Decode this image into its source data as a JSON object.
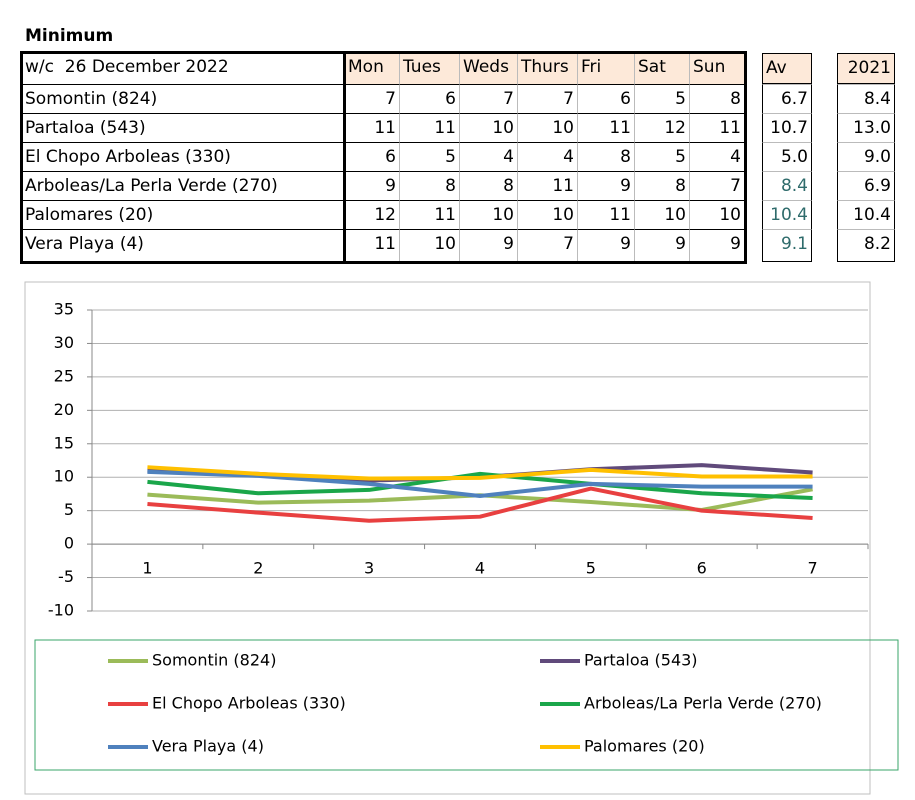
{
  "table": {
    "title": "Minimum",
    "header": [
      "w/c  26 December 2022",
      "Mon",
      "Tues",
      "Weds",
      "Thurs",
      "Fri",
      "Sat",
      "Sun",
      "Av",
      "2021"
    ],
    "rows": [
      [
        "Somontin (824)",
        "7",
        "6",
        "7",
        "7",
        "6",
        "5",
        "8",
        "6.7",
        "8.4"
      ],
      [
        "Partaloa (543)",
        "11",
        "11",
        "10",
        "10",
        "11",
        "12",
        "11",
        "10.7",
        "13.0"
      ],
      [
        "El Chopo Arboleas (330)",
        "6",
        "5",
        "4",
        "4",
        "8",
        "5",
        "4",
        "5.0",
        "9.0"
      ],
      [
        "Arboleas/La Perla Verde (270)",
        "9",
        "8",
        "8",
        "11",
        "9",
        "8",
        "7",
        "8.4",
        "6.9"
      ],
      [
        "Palomares (20)",
        "12",
        "11",
        "10",
        "10",
        "11",
        "10",
        "10",
        "10.4",
        "10.4"
      ],
      [
        "Vera Playa (4)",
        "11",
        "10",
        "9",
        "7",
        "9",
        "9",
        "9",
        "9.1",
        "8.2"
      ]
    ]
  },
  "chart_data": {
    "type": "line",
    "categories": [
      "1",
      "2",
      "3",
      "4",
      "5",
      "6",
      "7"
    ],
    "ylim": [
      -10,
      35
    ],
    "yticks": [
      -10,
      -5,
      0,
      5,
      10,
      15,
      20,
      25,
      30,
      35
    ],
    "grid": true,
    "series": [
      {
        "name": "Somontin (824)",
        "color": "#9bbb59",
        "values": [
          7.4,
          6.2,
          6.5,
          7.3,
          6.3,
          5.1,
          8.2
        ]
      },
      {
        "name": "Partaloa (543)",
        "color": "#604a7b",
        "values": [
          11,
          10.5,
          9.5,
          10,
          11.2,
          11.8,
          10.7
        ]
      },
      {
        "name": "El Chopo Arboleas (330)",
        "color": "#e84040",
        "values": [
          6,
          4.7,
          3.5,
          4.1,
          8.3,
          5,
          3.9
        ]
      },
      {
        "name": "Arboleas/La Perla Verde (270)",
        "color": "#1aa64a",
        "values": [
          9.3,
          7.6,
          8.1,
          10.5,
          9,
          7.6,
          6.9
        ]
      },
      {
        "name": "Vera Playa (4)",
        "color": "#4f81bd",
        "values": [
          10.8,
          10.2,
          9,
          7.2,
          9,
          8.6,
          8.6
        ]
      },
      {
        "name": "Palomares (20)",
        "color": "#ffc000",
        "values": [
          11.5,
          10.5,
          9.8,
          9.9,
          11.1,
          10.1,
          10.1
        ]
      }
    ]
  }
}
